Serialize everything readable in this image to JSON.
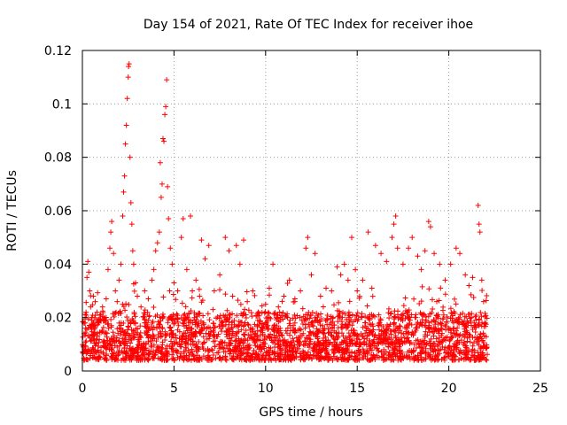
{
  "chart_data": {
    "type": "scatter",
    "title": "Day 154 of 2021, Rate Of TEC Index for receiver ihoe",
    "xlabel": "GPS time / hours",
    "ylabel": "ROTI / TECUs",
    "xlim": [
      0,
      25
    ],
    "ylim": [
      0,
      0.12
    ],
    "x_ticks": [
      "0",
      "5",
      "10",
      "15",
      "20",
      "25"
    ],
    "y_ticks": [
      "0",
      "0.02",
      "0.04",
      "0.06",
      "0.08",
      "0.1",
      "0.12"
    ],
    "x_tick_values": [
      0,
      5,
      10,
      15,
      20,
      25
    ],
    "y_tick_values": [
      0,
      0.02,
      0.04,
      0.06,
      0.08,
      0.1,
      0.12
    ],
    "grid": true,
    "marker": "plus",
    "color": "#ff0000",
    "series": [
      {
        "points": [
          [
            0.05,
            0.009
          ],
          [
            0.1,
            0.014
          ],
          [
            0.15,
            0.018
          ],
          [
            0.2,
            0.022
          ],
          [
            0.25,
            0.035
          ],
          [
            0.3,
            0.041
          ],
          [
            0.35,
            0.037
          ],
          [
            0.4,
            0.03
          ],
          [
            0.45,
            0.024
          ],
          [
            0.5,
            0.019
          ],
          [
            0.6,
            0.028
          ],
          [
            0.7,
            0.026
          ],
          [
            0.8,
            0.022
          ],
          [
            0.9,
            0.018
          ],
          [
            1.0,
            0.021
          ],
          [
            1.1,
            0.024
          ],
          [
            1.2,
            0.02
          ],
          [
            1.3,
            0.027
          ],
          [
            1.4,
            0.038
          ],
          [
            1.5,
            0.046
          ],
          [
            1.55,
            0.052
          ],
          [
            1.6,
            0.056
          ],
          [
            1.7,
            0.044
          ],
          [
            1.8,
            0.03
          ],
          [
            1.9,
            0.026
          ],
          [
            2.0,
            0.034
          ],
          [
            2.1,
            0.04
          ],
          [
            2.2,
            0.058
          ],
          [
            2.25,
            0.067
          ],
          [
            2.3,
            0.073
          ],
          [
            2.35,
            0.085
          ],
          [
            2.4,
            0.092
          ],
          [
            2.45,
            0.102
          ],
          [
            2.5,
            0.11
          ],
          [
            2.52,
            0.114
          ],
          [
            2.55,
            0.115
          ],
          [
            2.6,
            0.08
          ],
          [
            2.65,
            0.063
          ],
          [
            2.7,
            0.055
          ],
          [
            2.75,
            0.045
          ],
          [
            2.8,
            0.04
          ],
          [
            2.9,
            0.033
          ],
          [
            3.0,
            0.028
          ],
          [
            3.2,
            0.024
          ],
          [
            3.4,
            0.03
          ],
          [
            3.6,
            0.027
          ],
          [
            3.8,
            0.034
          ],
          [
            3.9,
            0.038
          ],
          [
            4.0,
            0.045
          ],
          [
            4.1,
            0.048
          ],
          [
            4.2,
            0.052
          ],
          [
            4.25,
            0.078
          ],
          [
            4.3,
            0.065
          ],
          [
            4.35,
            0.07
          ],
          [
            4.4,
            0.087
          ],
          [
            4.45,
            0.086
          ],
          [
            4.5,
            0.096
          ],
          [
            4.55,
            0.099
          ],
          [
            4.6,
            0.109
          ],
          [
            4.65,
            0.069
          ],
          [
            4.7,
            0.057
          ],
          [
            4.8,
            0.046
          ],
          [
            4.9,
            0.04
          ],
          [
            5.0,
            0.033
          ],
          [
            5.2,
            0.03
          ],
          [
            5.4,
            0.05
          ],
          [
            5.5,
            0.057
          ],
          [
            5.7,
            0.038
          ],
          [
            5.9,
            0.058
          ],
          [
            6.0,
            0.03
          ],
          [
            6.2,
            0.034
          ],
          [
            6.4,
            0.028
          ],
          [
            6.5,
            0.049
          ],
          [
            6.7,
            0.042
          ],
          [
            6.9,
            0.047
          ],
          [
            7.2,
            0.03
          ],
          [
            7.5,
            0.036
          ],
          [
            7.8,
            0.05
          ],
          [
            8.0,
            0.045
          ],
          [
            8.2,
            0.028
          ],
          [
            8.4,
            0.047
          ],
          [
            8.6,
            0.04
          ],
          [
            8.8,
            0.049
          ],
          [
            9.0,
            0.026
          ],
          [
            9.3,
            0.03
          ],
          [
            9.6,
            0.022
          ],
          [
            10.0,
            0.025
          ],
          [
            10.2,
            0.031
          ],
          [
            10.4,
            0.04
          ],
          [
            10.7,
            0.024
          ],
          [
            11.0,
            0.028
          ],
          [
            11.3,
            0.034
          ],
          [
            11.6,
            0.027
          ],
          [
            11.9,
            0.03
          ],
          [
            12.2,
            0.046
          ],
          [
            12.3,
            0.05
          ],
          [
            12.5,
            0.036
          ],
          [
            12.7,
            0.044
          ],
          [
            13.0,
            0.028
          ],
          [
            13.3,
            0.031
          ],
          [
            13.6,
            0.03
          ],
          [
            13.9,
            0.039
          ],
          [
            14.1,
            0.036
          ],
          [
            14.3,
            0.04
          ],
          [
            14.5,
            0.034
          ],
          [
            14.7,
            0.05
          ],
          [
            14.9,
            0.038
          ],
          [
            15.0,
            0.03
          ],
          [
            15.3,
            0.034
          ],
          [
            15.6,
            0.052
          ],
          [
            15.8,
            0.031
          ],
          [
            16.0,
            0.047
          ],
          [
            16.3,
            0.044
          ],
          [
            16.6,
            0.041
          ],
          [
            16.9,
            0.05
          ],
          [
            17.0,
            0.055
          ],
          [
            17.1,
            0.058
          ],
          [
            17.2,
            0.046
          ],
          [
            17.5,
            0.04
          ],
          [
            17.8,
            0.046
          ],
          [
            18.0,
            0.05
          ],
          [
            18.3,
            0.043
          ],
          [
            18.5,
            0.038
          ],
          [
            18.7,
            0.045
          ],
          [
            18.9,
            0.056
          ],
          [
            19.0,
            0.054
          ],
          [
            19.2,
            0.044
          ],
          [
            19.5,
            0.04
          ],
          [
            19.8,
            0.034
          ],
          [
            20.1,
            0.04
          ],
          [
            20.4,
            0.046
          ],
          [
            20.6,
            0.044
          ],
          [
            20.9,
            0.036
          ],
          [
            21.1,
            0.032
          ],
          [
            21.3,
            0.035
          ],
          [
            21.6,
            0.062
          ],
          [
            21.65,
            0.055
          ],
          [
            21.7,
            0.052
          ],
          [
            21.8,
            0.034
          ],
          [
            21.9,
            0.026
          ]
        ]
      }
    ],
    "background_band": {
      "x_start": 0,
      "x_end": 22.1,
      "y_min_typical": 0.004,
      "y_max_typical": 0.022
    }
  }
}
